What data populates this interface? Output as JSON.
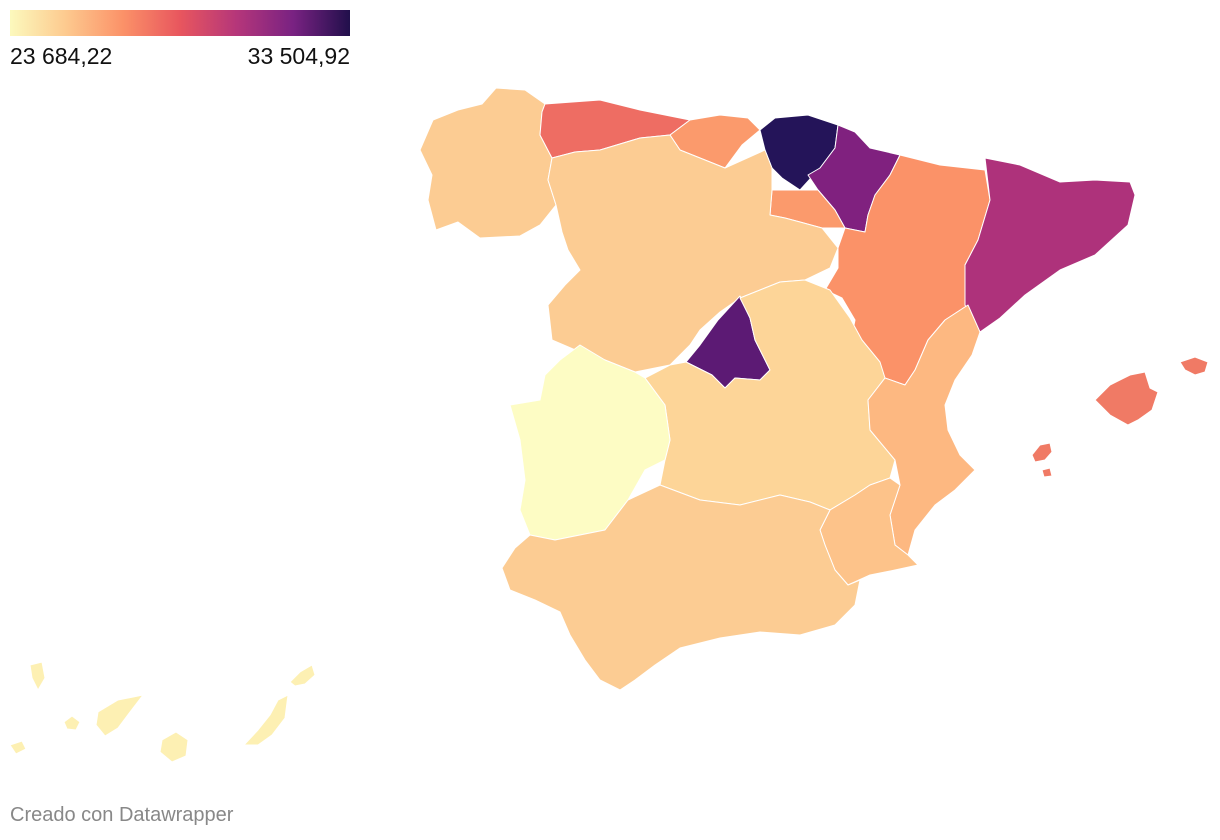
{
  "legend": {
    "min_label": "23 684,22",
    "max_label": "33 504,92",
    "gradient_colors": [
      "#fcf9bd",
      "#fdc98e",
      "#fb9168",
      "#e8565e",
      "#b5367a",
      "#792282",
      "#210f4b"
    ]
  },
  "footer": {
    "credit": "Creado con Datawrapper"
  },
  "map": {
    "regions": [
      {
        "name": "galicia",
        "color": "#fccc93"
      },
      {
        "name": "asturias",
        "color": "#ee6d63"
      },
      {
        "name": "cantabria",
        "color": "#fb9a6c"
      },
      {
        "name": "pais-vasco",
        "color": "#241459"
      },
      {
        "name": "navarra",
        "color": "#80217f"
      },
      {
        "name": "la-rioja",
        "color": "#fb9a6c"
      },
      {
        "name": "castilla-y-leon",
        "color": "#fccc93"
      },
      {
        "name": "aragon",
        "color": "#fb9268"
      },
      {
        "name": "cataluna",
        "color": "#ae327b"
      },
      {
        "name": "madrid",
        "color": "#5c1a74"
      },
      {
        "name": "castilla-la-mancha",
        "color": "#fdd598"
      },
      {
        "name": "extremadura",
        "color": "#fdfcc4"
      },
      {
        "name": "comunidad-valenciana",
        "color": "#fdb881"
      },
      {
        "name": "murcia",
        "color": "#fdc38a"
      },
      {
        "name": "andalucia",
        "color": "#fccc93"
      },
      {
        "name": "baleares",
        "color": "#f07a65"
      },
      {
        "name": "canarias",
        "color": "#fdf0b3"
      }
    ]
  }
}
